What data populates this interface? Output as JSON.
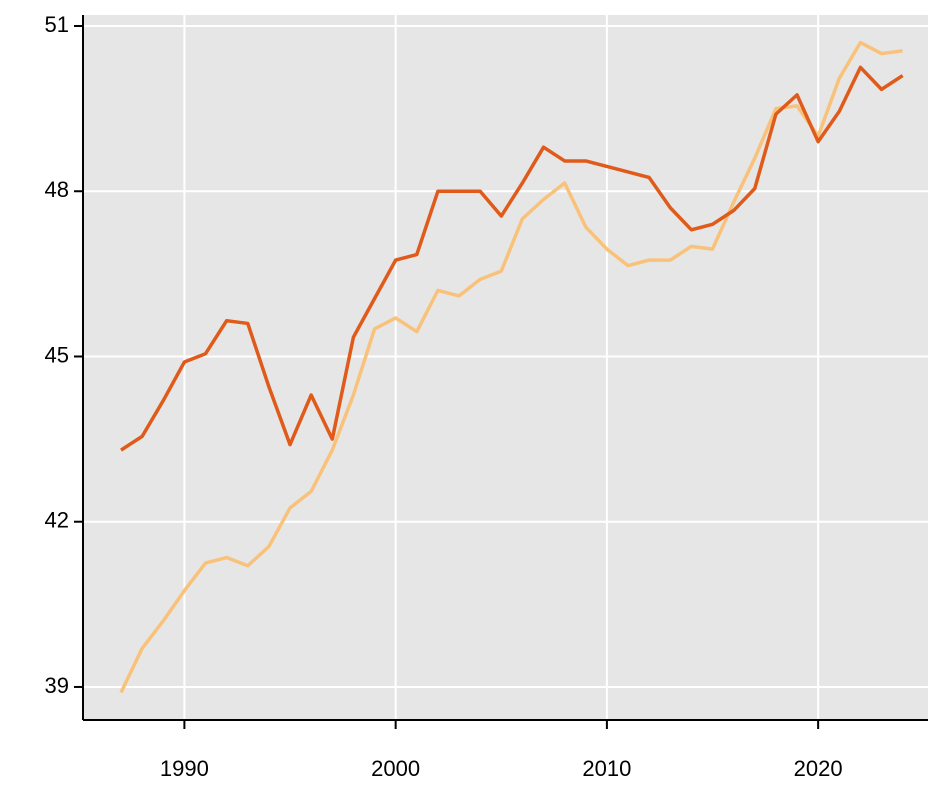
{
  "chart_data": {
    "type": "line",
    "x": [
      1987,
      1988,
      1989,
      1990,
      1991,
      1992,
      1993,
      1994,
      1995,
      1996,
      1997,
      1998,
      1999,
      2000,
      2001,
      2002,
      2003,
      2004,
      2005,
      2006,
      2007,
      2008,
      2009,
      2010,
      2011,
      2012,
      2013,
      2014,
      2015,
      2016,
      2017,
      2018,
      2019,
      2020,
      2021,
      2022,
      2023,
      2024
    ],
    "series": [
      {
        "color": "#e05a1a",
        "values": [
          43.3,
          43.55,
          44.2,
          44.9,
          45.05,
          45.65,
          45.6,
          44.45,
          43.4,
          44.3,
          43.5,
          45.35,
          46.05,
          46.75,
          46.85,
          48.0,
          48.0,
          48.0,
          47.55,
          48.15,
          48.8,
          48.55,
          48.55,
          48.45,
          48.35,
          48.25,
          47.7,
          47.3,
          47.4,
          47.65,
          48.05,
          49.4,
          49.75,
          48.9,
          49.45,
          50.25,
          49.85,
          50.1
        ]
      },
      {
        "color": "#f9c27a",
        "values": [
          38.9,
          39.7,
          40.2,
          40.75,
          41.25,
          41.35,
          41.2,
          41.55,
          42.25,
          42.55,
          43.3,
          44.3,
          45.5,
          45.7,
          45.45,
          46.2,
          46.1,
          46.4,
          46.55,
          47.5,
          47.85,
          48.15,
          47.35,
          46.95,
          46.65,
          46.75,
          46.75,
          47.0,
          46.95,
          47.8,
          48.6,
          49.5,
          49.55,
          49.0,
          50.05,
          50.7,
          50.5,
          50.55
        ]
      }
    ],
    "xlim": [
      1985.2,
      2025.2
    ],
    "xticks": [
      1990,
      2000,
      2010,
      2020
    ],
    "ylim": [
      38.4,
      51.2
    ],
    "yticks": [
      39,
      42,
      45,
      48,
      51
    ],
    "grid": true
  }
}
